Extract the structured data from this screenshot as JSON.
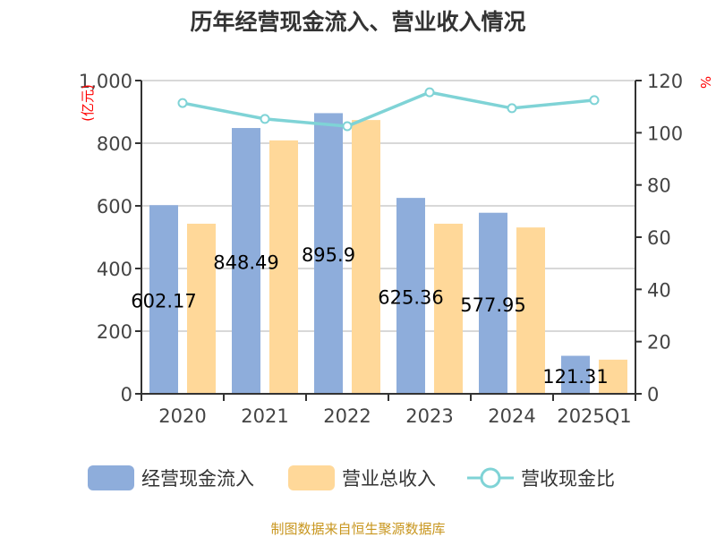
{
  "chart_data": {
    "type": "bar",
    "title": "历年经营现金流入、营业收入情况",
    "categories": [
      "2020",
      "2021",
      "2022",
      "2023",
      "2024",
      "2025Q1"
    ],
    "series": [
      {
        "name": "经营现金流入",
        "type": "bar",
        "axis": "left",
        "color": "#8eaddb",
        "values": [
          602.17,
          848.49,
          895.9,
          625.36,
          577.95,
          121.31
        ],
        "labels": [
          "602.17",
          "848.49",
          "895.9",
          "625.36",
          "577.95",
          "121.31"
        ]
      },
      {
        "name": "营业总收入",
        "type": "bar",
        "axis": "left",
        "color": "#ffd899",
        "values": [
          543,
          809,
          874,
          543,
          531,
          109
        ]
      },
      {
        "name": "营收现金比",
        "type": "line",
        "axis": "right",
        "color": "#7fd3d6",
        "values": [
          111.4,
          105.3,
          102.5,
          115.5,
          109.4,
          112.5
        ]
      }
    ],
    "ylabel": "(亿元)",
    "y2label": "%",
    "ylim": [
      0,
      1000
    ],
    "y2lim": [
      0,
      120
    ],
    "yticks": [
      "0",
      "200",
      "400",
      "600",
      "800",
      "1,000"
    ],
    "y2ticks": [
      "0",
      "20",
      "40",
      "60",
      "80",
      "100",
      "120"
    ],
    "grid": true,
    "legend": "bottom"
  },
  "source": "制图数据来自恒生聚源数据库"
}
